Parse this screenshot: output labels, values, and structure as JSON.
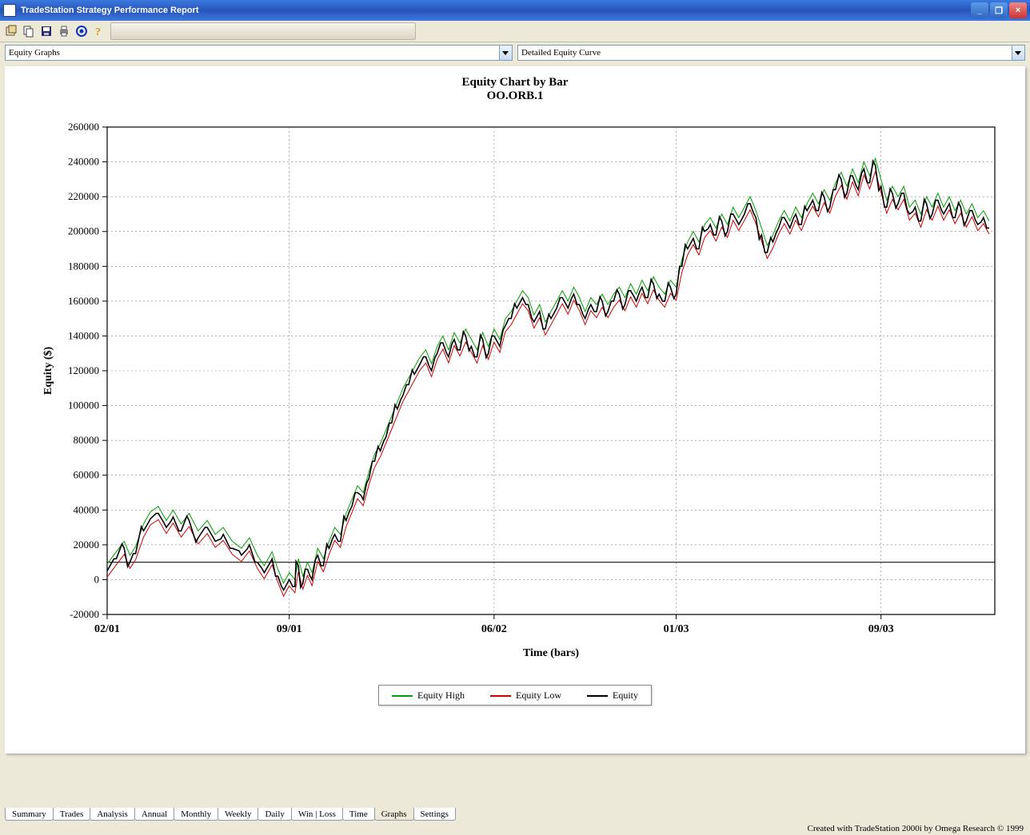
{
  "window": {
    "title": "TradeStation Strategy Performance Report"
  },
  "toolbar": {
    "icons": [
      "properties-icon",
      "copy-icon",
      "save-icon",
      "print-icon",
      "target-icon",
      "help-icon"
    ]
  },
  "selectors": {
    "left": {
      "value": "Equity Graphs"
    },
    "right": {
      "value": "Detailed Equity Curve"
    }
  },
  "chart": {
    "type": "line",
    "title": "Equity Chart by Bar",
    "subtitle": "OO.ORB.1",
    "xlabel": "Time (bars)",
    "ylabel": "Equity ($)",
    "title_fontsize": 15,
    "label_fontsize": 14,
    "background_color": "#ffffff",
    "plot_border_color": "#000000",
    "grid_color": "#808080",
    "grid_dash": "2,3",
    "x": {
      "min": 0,
      "max": 780,
      "tick_values": [
        0,
        160,
        340,
        500,
        680
      ],
      "tick_labels": [
        "02/01",
        "09/01",
        "06/02",
        "01/03",
        "09/03"
      ]
    },
    "y": {
      "min": -20000,
      "max": 260000,
      "tick_step": 20000
    },
    "ref_line_y": 10000,
    "series": {
      "equity_high": {
        "color": "#00a000",
        "label": "Equity High",
        "width": 1
      },
      "equity_low": {
        "color": "#d00000",
        "label": "Equity Low",
        "width": 1
      },
      "equity": {
        "color": "#000000",
        "label": "Equity",
        "width": 1.6
      }
    },
    "data_equity": [
      [
        0,
        5000
      ],
      [
        8,
        12000
      ],
      [
        15,
        18000
      ],
      [
        20,
        10000
      ],
      [
        25,
        15000
      ],
      [
        32,
        28000
      ],
      [
        38,
        35000
      ],
      [
        45,
        38000
      ],
      [
        52,
        30000
      ],
      [
        58,
        36000
      ],
      [
        65,
        28000
      ],
      [
        72,
        34000
      ],
      [
        80,
        24000
      ],
      [
        88,
        30000
      ],
      [
        95,
        22000
      ],
      [
        102,
        26000
      ],
      [
        110,
        18000
      ],
      [
        118,
        14000
      ],
      [
        125,
        20000
      ],
      [
        132,
        10000
      ],
      [
        138,
        4000
      ],
      [
        145,
        12000
      ],
      [
        150,
        2000
      ],
      [
        155,
        -6000
      ],
      [
        160,
        0
      ],
      [
        165,
        -4000
      ],
      [
        168,
        8000
      ],
      [
        172,
        -2000
      ],
      [
        176,
        6000
      ],
      [
        180,
        0
      ],
      [
        185,
        14000
      ],
      [
        190,
        8000
      ],
      [
        195,
        18000
      ],
      [
        200,
        26000
      ],
      [
        205,
        22000
      ],
      [
        210,
        34000
      ],
      [
        215,
        42000
      ],
      [
        220,
        50000
      ],
      [
        225,
        46000
      ],
      [
        230,
        58000
      ],
      [
        235,
        68000
      ],
      [
        240,
        74000
      ],
      [
        245,
        82000
      ],
      [
        250,
        90000
      ],
      [
        255,
        98000
      ],
      [
        260,
        106000
      ],
      [
        265,
        112000
      ],
      [
        270,
        118000
      ],
      [
        275,
        124000
      ],
      [
        280,
        128000
      ],
      [
        285,
        120000
      ],
      [
        290,
        130000
      ],
      [
        295,
        136000
      ],
      [
        300,
        128000
      ],
      [
        305,
        138000
      ],
      [
        310,
        132000
      ],
      [
        315,
        140000
      ],
      [
        320,
        134000
      ],
      [
        325,
        128000
      ],
      [
        330,
        138000
      ],
      [
        335,
        130000
      ],
      [
        340,
        140000
      ],
      [
        345,
        134000
      ],
      [
        350,
        146000
      ],
      [
        355,
        150000
      ],
      [
        360,
        156000
      ],
      [
        365,
        162000
      ],
      [
        370,
        158000
      ],
      [
        375,
        148000
      ],
      [
        380,
        154000
      ],
      [
        385,
        144000
      ],
      [
        390,
        150000
      ],
      [
        395,
        156000
      ],
      [
        400,
        162000
      ],
      [
        405,
        156000
      ],
      [
        410,
        164000
      ],
      [
        415,
        158000
      ],
      [
        420,
        150000
      ],
      [
        425,
        158000
      ],
      [
        430,
        154000
      ],
      [
        435,
        160000
      ],
      [
        440,
        154000
      ],
      [
        445,
        160000
      ],
      [
        450,
        164000
      ],
      [
        455,
        158000
      ],
      [
        460,
        166000
      ],
      [
        465,
        160000
      ],
      [
        470,
        168000
      ],
      [
        475,
        162000
      ],
      [
        480,
        170000
      ],
      [
        485,
        164000
      ],
      [
        490,
        160000
      ],
      [
        495,
        168000
      ],
      [
        500,
        164000
      ],
      [
        505,
        180000
      ],
      [
        510,
        190000
      ],
      [
        515,
        196000
      ],
      [
        520,
        190000
      ],
      [
        525,
        200000
      ],
      [
        530,
        204000
      ],
      [
        535,
        198000
      ],
      [
        540,
        206000
      ],
      [
        545,
        200000
      ],
      [
        550,
        210000
      ],
      [
        555,
        204000
      ],
      [
        560,
        210000
      ],
      [
        565,
        216000
      ],
      [
        570,
        208000
      ],
      [
        575,
        198000
      ],
      [
        580,
        188000
      ],
      [
        585,
        194000
      ],
      [
        590,
        202000
      ],
      [
        595,
        208000
      ],
      [
        600,
        202000
      ],
      [
        605,
        210000
      ],
      [
        610,
        204000
      ],
      [
        615,
        212000
      ],
      [
        620,
        218000
      ],
      [
        625,
        212000
      ],
      [
        630,
        220000
      ],
      [
        635,
        214000
      ],
      [
        640,
        224000
      ],
      [
        645,
        230000
      ],
      [
        650,
        222000
      ],
      [
        655,
        232000
      ],
      [
        660,
        224000
      ],
      [
        665,
        236000
      ],
      [
        670,
        228000
      ],
      [
        675,
        238000
      ],
      [
        680,
        226000
      ],
      [
        685,
        214000
      ],
      [
        690,
        222000
      ],
      [
        695,
        216000
      ],
      [
        700,
        222000
      ],
      [
        705,
        210000
      ],
      [
        710,
        214000
      ],
      [
        715,
        206000
      ],
      [
        720,
        216000
      ],
      [
        725,
        210000
      ],
      [
        730,
        218000
      ],
      [
        735,
        210000
      ],
      [
        740,
        216000
      ],
      [
        745,
        208000
      ],
      [
        750,
        214000
      ],
      [
        755,
        206000
      ],
      [
        760,
        212000
      ],
      [
        765,
        204000
      ],
      [
        770,
        208000
      ],
      [
        775,
        202000
      ]
    ],
    "high_offset": 4000,
    "low_offset": -3500
  },
  "legend": {
    "items": [
      {
        "label": "Equity High",
        "color": "#00a000"
      },
      {
        "label": "Equity Low",
        "color": "#d00000"
      },
      {
        "label": "Equity",
        "color": "#000000"
      }
    ]
  },
  "tabs": {
    "items": [
      "Summary",
      "Trades",
      "Analysis",
      "Annual",
      "Monthly",
      "Weekly",
      "Daily",
      "Win | Loss",
      "Time",
      "Graphs",
      "Settings"
    ],
    "active": "Graphs"
  },
  "footer": {
    "text": "Created with TradeStation 2000i by Omega Research © 1999"
  }
}
